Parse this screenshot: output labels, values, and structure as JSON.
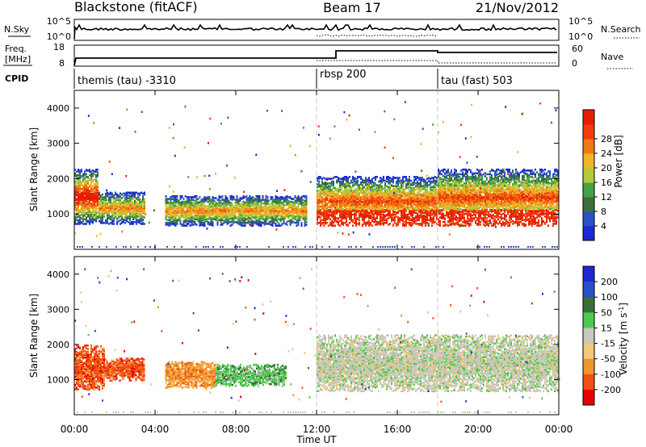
{
  "header": {
    "station": "Blackstone (fitACF)",
    "beam": "Beam 17",
    "date": "21/Nov/2012"
  },
  "top_panel": {
    "left_label": "N.Sky",
    "left_ticks": [
      "10^5",
      "10^0"
    ],
    "right_label": "N.Search",
    "right_ticks": [
      "10^5",
      "10^0"
    ]
  },
  "freq_panel": {
    "left_label_1": "Freq.",
    "left_label_2": "[MHz]",
    "left_ticks": [
      "18",
      "8"
    ],
    "right_label": "Nave",
    "right_ticks": [
      "60",
      "0"
    ]
  },
  "cpid": {
    "label": "CPID",
    "segments": [
      {
        "label": "themis (tau) -3310",
        "start_hour": 0
      },
      {
        "label": "rbsp 200",
        "start_hour": 12
      },
      {
        "label": "tau (fast) 503",
        "start_hour": 18
      }
    ]
  },
  "colors": {
    "power": [
      "#1e28d2",
      "#2850c8",
      "#3c6e3c",
      "#46a046",
      "#b4c83c",
      "#f0b428",
      "#f07814",
      "#f03c0a",
      "#e61e00"
    ],
    "velocity": [
      "#1e28d2",
      "#2850c8",
      "#3c6e3c",
      "#50c850",
      "#c8c8be",
      "#f0c878",
      "#f09628",
      "#f05014",
      "#e60000"
    ],
    "guideline": "#c8c8c8"
  },
  "chart_data": [
    {
      "type": "heatmap",
      "title": "",
      "xlabel": "",
      "ylabel": "Slant Range [km]",
      "xlim": [
        0,
        24
      ],
      "ylim": [
        0,
        4500
      ],
      "x_ticks": [
        "00:00",
        "04:00",
        "08:00",
        "12:00",
        "16:00",
        "20:00",
        "00:00"
      ],
      "y_ticks": [
        1000,
        2000,
        3000,
        4000
      ],
      "colorbar_label": "Power [dB]",
      "colorbar_ticks": [
        "4",
        "8",
        "12",
        "16",
        "20",
        "24",
        "28"
      ],
      "regions": [
        {
          "t0": 0.0,
          "t1": 1.2,
          "r0": 750,
          "r1": 2300,
          "level": 6
        },
        {
          "t0": 1.2,
          "t1": 3.5,
          "r0": 750,
          "r1": 1650,
          "level": 3
        },
        {
          "t0": 4.5,
          "t1": 11.5,
          "r0": 700,
          "r1": 1550,
          "level": 3
        },
        {
          "t0": 12.0,
          "t1": 18.0,
          "r0": 700,
          "r1": 2100,
          "level": 4
        },
        {
          "t0": 18.0,
          "t1": 24.0,
          "r0": 700,
          "r1": 2300,
          "level": 4
        }
      ]
    },
    {
      "type": "heatmap",
      "title": "",
      "xlabel": "Time UT",
      "ylabel": "Slant Range [km]",
      "xlim": [
        0,
        24
      ],
      "ylim": [
        0,
        4500
      ],
      "x_ticks": [
        "00:00",
        "04:00",
        "08:00",
        "12:00",
        "16:00",
        "20:00",
        "00:00"
      ],
      "y_ticks": [
        1000,
        2000,
        3000,
        4000
      ],
      "colorbar_label": "Velocity [m s^-1]",
      "colorbar_ticks": [
        "200",
        "100",
        "50",
        "15",
        "-15",
        "-50",
        "-100",
        "-200"
      ],
      "regions": [
        {
          "t0": 0.0,
          "t1": 1.5,
          "r0": 750,
          "r1": 2000,
          "level": 7
        },
        {
          "t0": 1.5,
          "t1": 3.5,
          "r0": 1000,
          "r1": 1650,
          "level": 7
        },
        {
          "t0": 4.5,
          "t1": 7.0,
          "r0": 800,
          "r1": 1550,
          "level": 6
        },
        {
          "t0": 7.0,
          "t1": 10.5,
          "r0": 850,
          "r1": 1450,
          "level": 3
        },
        {
          "t0": 12.0,
          "t1": 24.0,
          "r0": 700,
          "r1": 2300,
          "level": 4
        }
      ]
    }
  ]
}
